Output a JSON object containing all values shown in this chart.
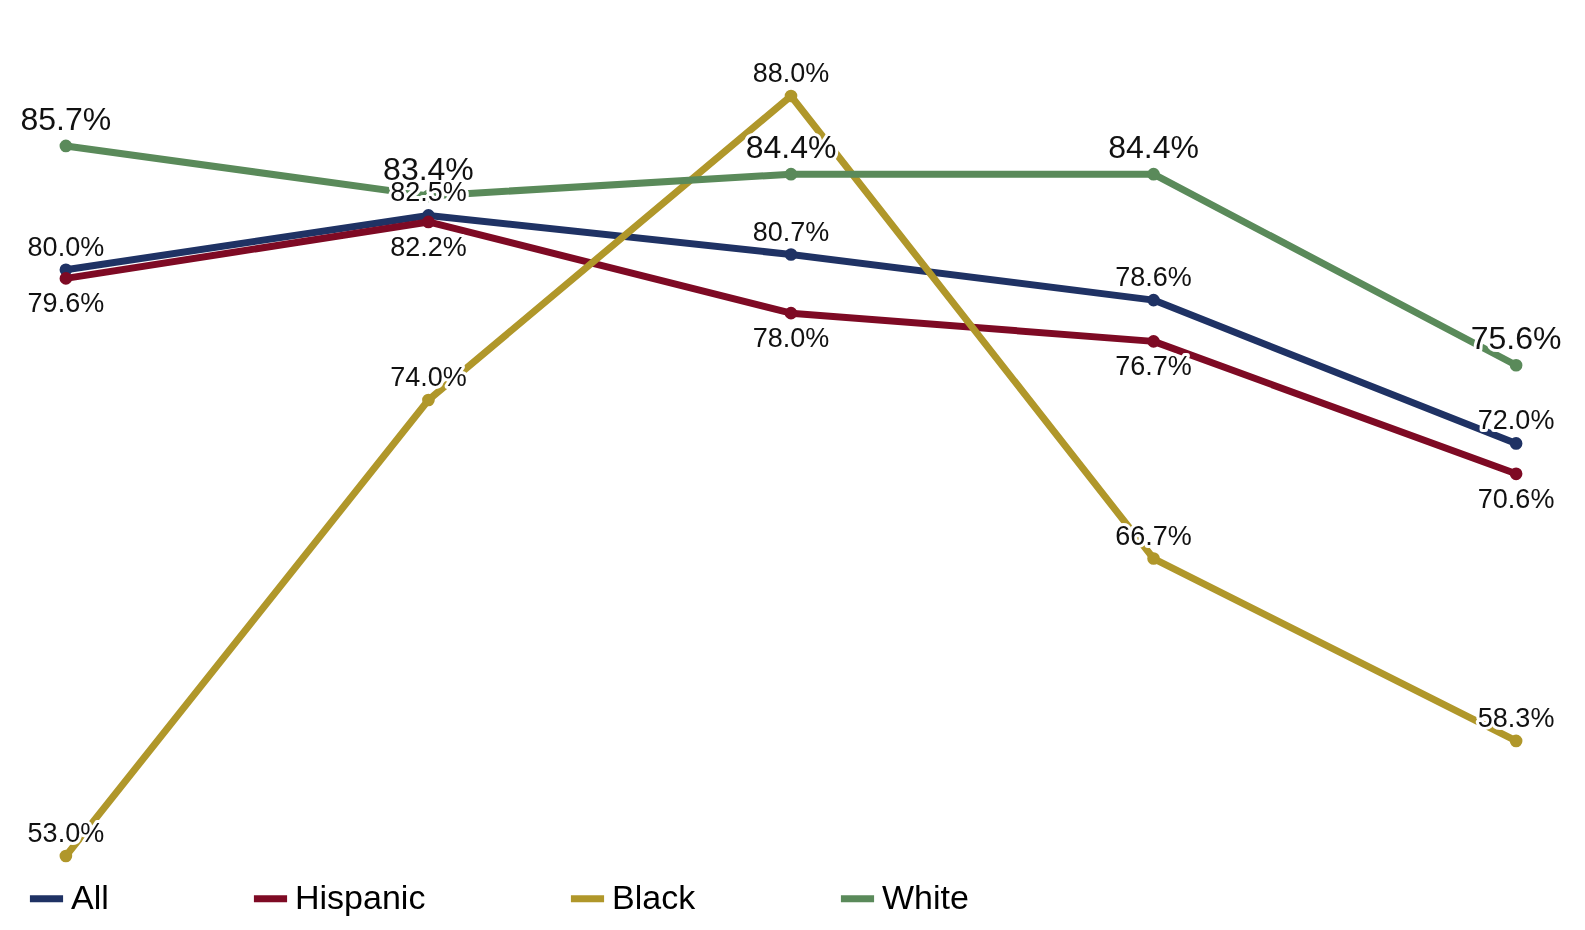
{
  "chart_data": {
    "type": "line",
    "categories": [
      null,
      null,
      null,
      null,
      null
    ],
    "series": [
      {
        "name": "All",
        "color": "#1f3264",
        "values": [
          80.0,
          82.5,
          80.7,
          78.6,
          72.0
        ],
        "value_labels": [
          "80.0%",
          "82.5%",
          "80.7%",
          "78.6%",
          "72.0%"
        ]
      },
      {
        "name": "Hispanic",
        "color": "#7e0a24",
        "values": [
          79.6,
          82.2,
          78.0,
          76.7,
          70.6
        ],
        "value_labels": [
          "79.6%",
          "82.2%",
          "78.0%",
          "76.7%",
          "70.6%"
        ]
      },
      {
        "name": "Black",
        "color": "#b0972a",
        "values": [
          53.0,
          74.0,
          88.0,
          66.7,
          58.3
        ],
        "value_labels": [
          "53.0%",
          "74.0%",
          "88.0%",
          "66.7%",
          "58.3%"
        ]
      },
      {
        "name": "White",
        "color": "#5a8a5a",
        "values": [
          85.7,
          83.4,
          84.4,
          84.4,
          75.6
        ],
        "value_labels": [
          "85.7%",
          "83.4%",
          "84.4%",
          "84.4%",
          "75.6%"
        ]
      }
    ],
    "legend": "bottom",
    "marker": "circle",
    "line_style": "solid"
  }
}
